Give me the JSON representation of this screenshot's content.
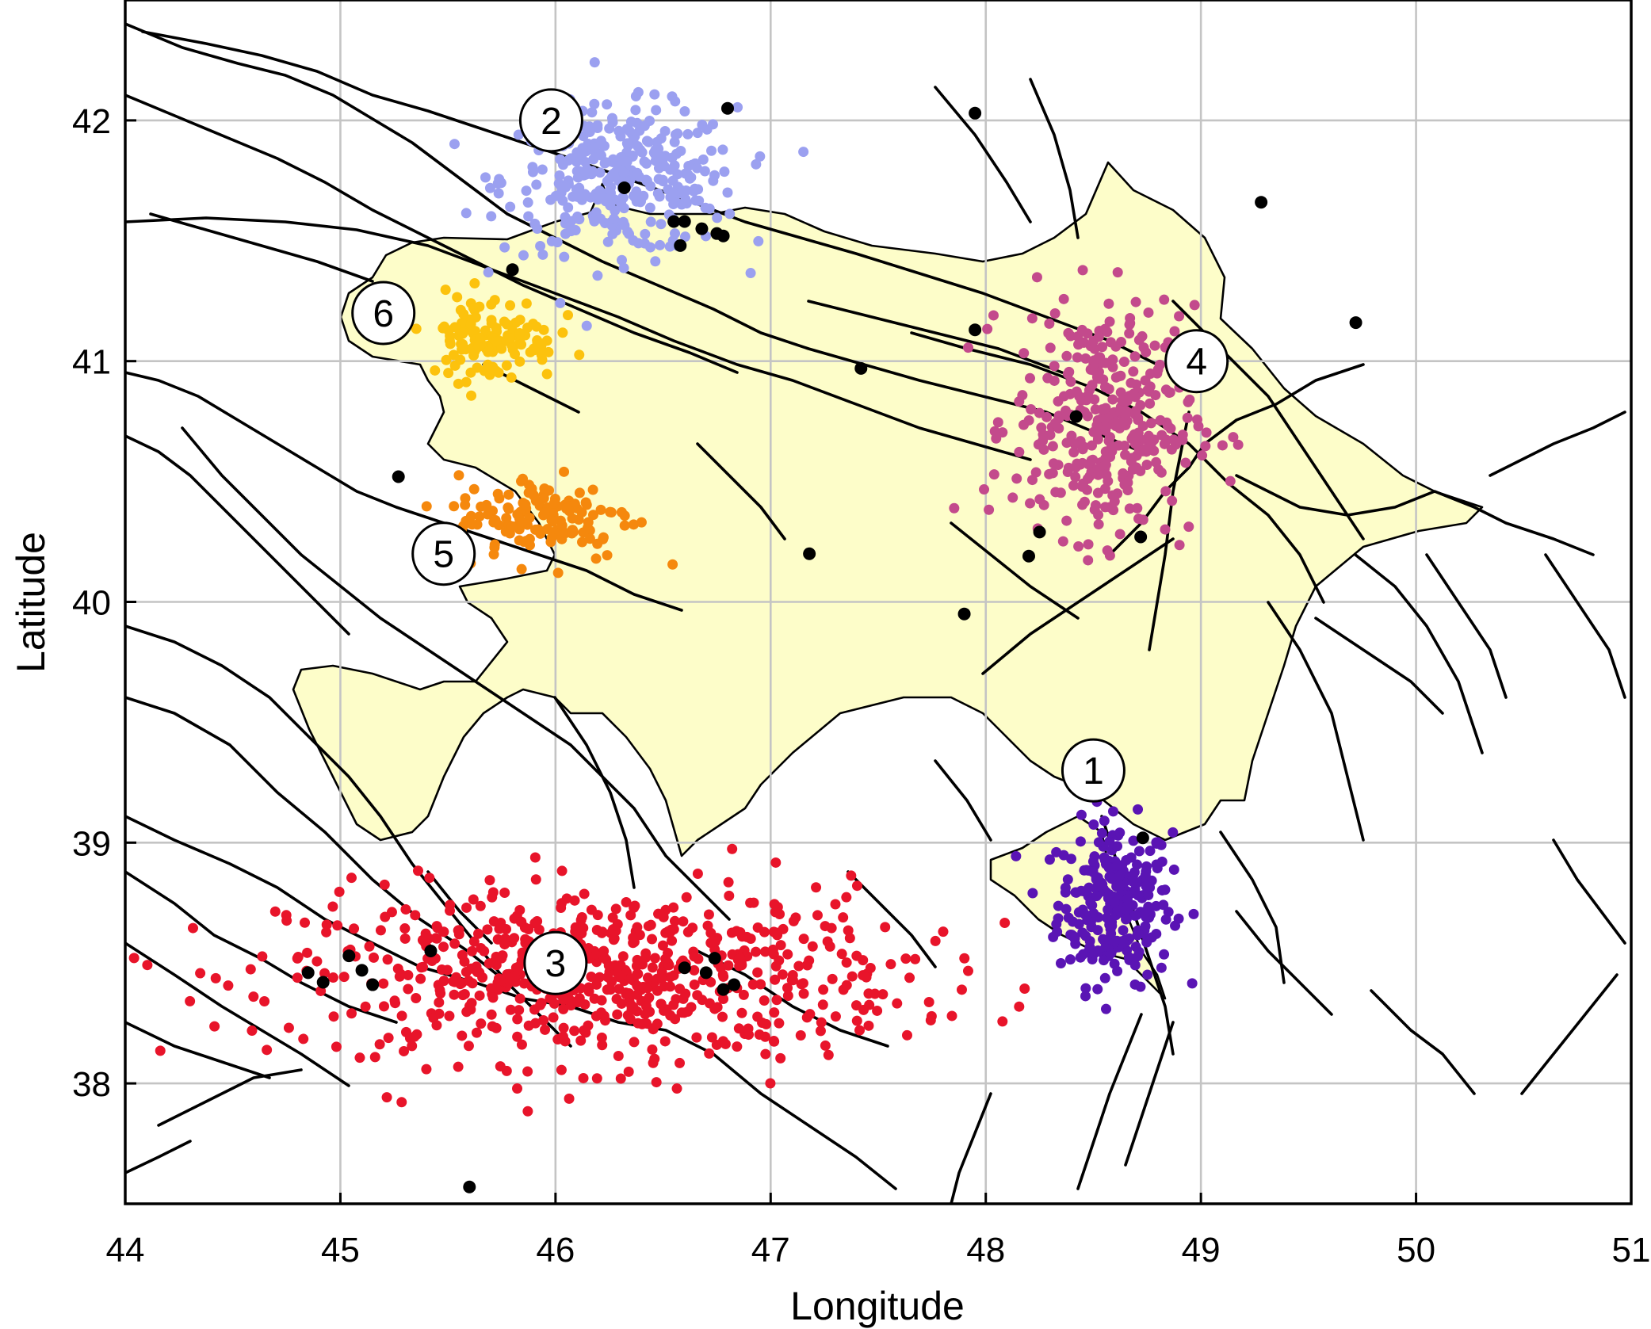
{
  "axes": {
    "xlabel": "Longitude",
    "ylabel": "Latitude",
    "xlim": [
      44,
      51
    ],
    "ylim": [
      37.5,
      42.5
    ],
    "xticks": [
      "44",
      "45",
      "46",
      "47",
      "48",
      "49",
      "50",
      "51"
    ],
    "yticks": [
      "38",
      "39",
      "40",
      "41",
      "42"
    ],
    "grid": true
  },
  "shaded_region_color": "#fdfdc9",
  "clusters": [
    {
      "label": "1",
      "color": "#5a14b4",
      "center": [
        48.6,
        38.75
      ],
      "spread": [
        0.22,
        0.28
      ],
      "count": 260,
      "label_pos": [
        48.5,
        39.3
      ]
    },
    {
      "label": "2",
      "color": "#9ba0f0",
      "center": [
        46.3,
        41.75
      ],
      "spread": [
        0.45,
        0.25
      ],
      "count": 340,
      "label_pos": [
        45.98,
        42.0
      ]
    },
    {
      "label": "3",
      "color": "#e8142a",
      "center": [
        46.2,
        38.45
      ],
      "spread": [
        1.2,
        0.3
      ],
      "count": 700,
      "label_pos": [
        46.0,
        38.5
      ]
    },
    {
      "label": "4",
      "color": "#c34a8c",
      "center": [
        48.55,
        40.75
      ],
      "spread": [
        0.35,
        0.4
      ],
      "count": 360,
      "label_pos": [
        48.98,
        41.0
      ]
    },
    {
      "label": "5",
      "color": "#f5880d",
      "center": [
        45.95,
        40.35
      ],
      "spread": [
        0.35,
        0.15
      ],
      "count": 140,
      "label_pos": [
        45.48,
        40.2
      ]
    },
    {
      "label": "6",
      "color": "#fcc20d",
      "center": [
        45.7,
        41.1
      ],
      "spread": [
        0.25,
        0.15
      ],
      "count": 120,
      "label_pos": [
        45.2,
        41.2
      ]
    }
  ],
  "large_events": [
    [
      46.8,
      42.05
    ],
    [
      47.95,
      42.03
    ],
    [
      46.32,
      41.72
    ],
    [
      46.55,
      41.58
    ],
    [
      46.6,
      41.58
    ],
    [
      46.68,
      41.55
    ],
    [
      46.75,
      41.53
    ],
    [
      46.78,
      41.52
    ],
    [
      46.58,
      41.48
    ],
    [
      45.8,
      41.38
    ],
    [
      47.95,
      41.13
    ],
    [
      47.42,
      40.97
    ],
    [
      48.42,
      40.77
    ],
    [
      45.27,
      40.52
    ],
    [
      47.18,
      40.2
    ],
    [
      48.25,
      40.29
    ],
    [
      48.2,
      40.19
    ],
    [
      48.72,
      40.27
    ],
    [
      47.9,
      39.95
    ],
    [
      49.28,
      41.66
    ],
    [
      49.72,
      41.16
    ],
    [
      48.73,
      39.02
    ],
    [
      44.85,
      38.46
    ],
    [
      44.92,
      38.42
    ],
    [
      45.04,
      38.53
    ],
    [
      45.1,
      38.47
    ],
    [
      45.15,
      38.41
    ],
    [
      45.42,
      38.55
    ],
    [
      46.6,
      38.48
    ],
    [
      46.7,
      38.46
    ],
    [
      46.74,
      38.52
    ],
    [
      46.78,
      38.39
    ],
    [
      46.83,
      38.41
    ],
    [
      45.6,
      37.57
    ]
  ],
  "large_event_color": "#000000"
}
